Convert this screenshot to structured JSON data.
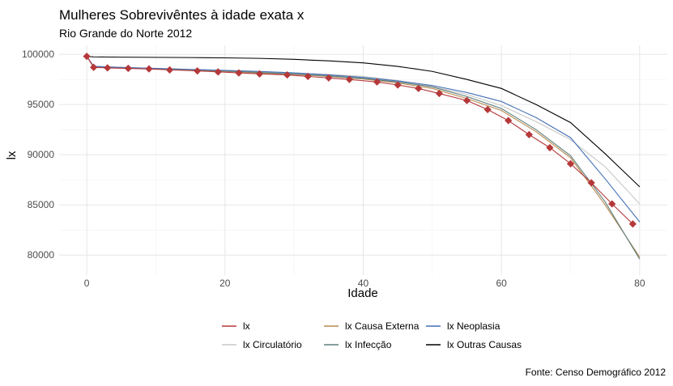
{
  "chart_data": {
    "type": "line",
    "title": "Mulheres Sobrevivêntes à idade exata x",
    "subtitle": "Rio Grande do Norte 2012",
    "xlabel": "Idade",
    "ylabel": "lx",
    "caption": "Fonte: Censo Demográfico 2012",
    "xlim": [
      -4,
      84
    ],
    "ylim": [
      78000,
      100900
    ],
    "x_ticks": [
      0,
      20,
      40,
      60,
      80
    ],
    "x_tick_labels": [
      "0",
      "20",
      "40",
      "60",
      "80"
    ],
    "y_ticks": [
      80000,
      85000,
      90000,
      95000,
      100000
    ],
    "y_tick_labels": [
      "80000",
      "85000",
      "90000",
      "95000",
      "100000"
    ],
    "grid": true,
    "legend_position": "bottom",
    "series": [
      {
        "name": "lx",
        "color": "#b5383a",
        "markers": "diamond",
        "x": [
          0,
          1,
          3,
          6,
          9,
          12,
          16,
          19,
          22,
          25,
          29,
          32,
          35,
          38,
          42,
          45,
          48,
          51,
          55,
          58,
          61,
          64,
          67,
          70,
          73,
          76,
          79
        ],
        "y": [
          99800,
          98700,
          98650,
          98600,
          98550,
          98450,
          98350,
          98250,
          98150,
          98050,
          97950,
          97800,
          97650,
          97500,
          97250,
          96950,
          96600,
          96100,
          95400,
          94500,
          93400,
          92000,
          90700,
          89100,
          87200,
          85100,
          83100
        ]
      },
      {
        "name": "lx Circulatório",
        "color": "#c8c8c8",
        "x": [
          0,
          1,
          5,
          10,
          15,
          20,
          25,
          30,
          35,
          40,
          45,
          50,
          55,
          60,
          65,
          70,
          75,
          80
        ],
        "y": [
          99800,
          98800,
          98700,
          98600,
          98500,
          98400,
          98300,
          98150,
          98000,
          97800,
          97400,
          96800,
          96000,
          94900,
          93300,
          91500,
          88800,
          85100
        ]
      },
      {
        "name": "lx Causa Externa",
        "color": "#b98a4e",
        "x": [
          0,
          1,
          5,
          10,
          15,
          20,
          25,
          30,
          35,
          40,
          45,
          50,
          55,
          60,
          65,
          70,
          75,
          80
        ],
        "y": [
          99800,
          98750,
          98650,
          98550,
          98450,
          98300,
          98150,
          98000,
          97800,
          97550,
          97150,
          96600,
          95600,
          94400,
          92300,
          89700,
          85000,
          79800
        ]
      },
      {
        "name": "lx Infecção",
        "color": "#5d7e7c",
        "x": [
          0,
          1,
          5,
          10,
          15,
          20,
          25,
          30,
          35,
          40,
          45,
          50,
          55,
          60,
          65,
          70,
          75,
          80
        ],
        "y": [
          99800,
          98780,
          98680,
          98580,
          98480,
          98350,
          98200,
          98050,
          97850,
          97600,
          97250,
          96750,
          95800,
          94600,
          92500,
          89900,
          85300,
          79600
        ]
      },
      {
        "name": "lx Neoplasia",
        "color": "#4470b6",
        "x": [
          0,
          1,
          5,
          10,
          15,
          20,
          25,
          30,
          35,
          40,
          45,
          50,
          55,
          60,
          65,
          70,
          75,
          80
        ],
        "y": [
          99800,
          98800,
          98700,
          98600,
          98500,
          98400,
          98300,
          98150,
          97950,
          97700,
          97350,
          96900,
          96200,
          95300,
          93700,
          91700,
          87600,
          83300
        ]
      },
      {
        "name": "lx Outras Causas",
        "color": "#000000",
        "x": [
          0,
          1,
          5,
          10,
          15,
          20,
          25,
          30,
          35,
          40,
          45,
          50,
          55,
          60,
          65,
          70,
          75,
          80
        ],
        "y": [
          99800,
          99750,
          99720,
          99700,
          99680,
          99650,
          99600,
          99500,
          99350,
          99150,
          98800,
          98300,
          97500,
          96600,
          95000,
          93200,
          90100,
          86800
        ]
      }
    ]
  }
}
